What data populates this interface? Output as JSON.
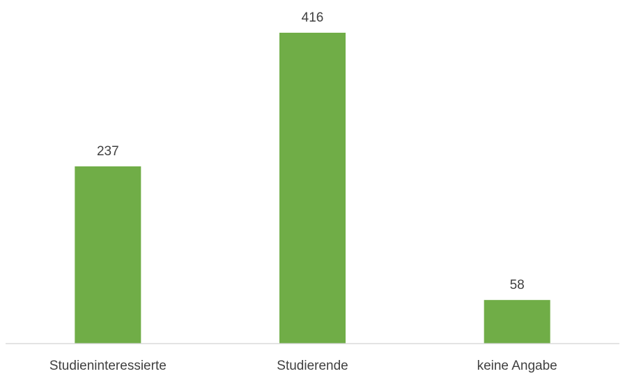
{
  "chart_data": {
    "type": "bar",
    "categories": [
      "Studieninteressierte",
      "Studierende",
      "keine Angabe"
    ],
    "values": [
      237,
      416,
      58
    ],
    "title": "",
    "xlabel": "",
    "ylabel": "",
    "ylim": [
      0,
      416
    ],
    "grid": false,
    "legend": "none",
    "data_labels": true,
    "colors": {
      "bar": "#70ad47",
      "axis": "#d9d9d9",
      "text": "#404040"
    }
  }
}
